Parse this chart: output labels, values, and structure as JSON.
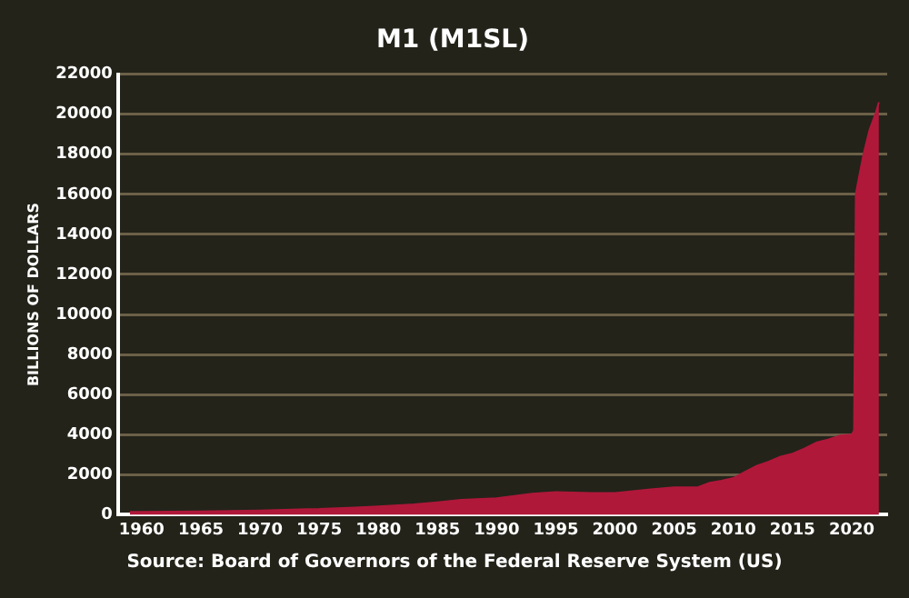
{
  "chart_data": {
    "type": "area",
    "title": "M1 (M1SL)",
    "ylabel": "BILLIONS OF DOLLARS",
    "annotations": [
      "Source: Board of Governors of the Federal Reserve System (US)"
    ],
    "x": [
      1959,
      1960,
      1965,
      1970,
      1974,
      1975,
      1978,
      1980,
      1983,
      1985,
      1987,
      1990,
      1993,
      1995,
      1998,
      2000,
      2003,
      2005,
      2007,
      2008,
      2009,
      2010,
      2011,
      2012,
      2013,
      2014,
      2015,
      2016,
      2017,
      2018,
      2019,
      2020,
      2020.2,
      2020.35,
      2020.5,
      2021,
      2021.5,
      2022,
      2022.3
    ],
    "series": [
      {
        "color": "#b0183a",
        "values": [
          140,
          140,
          165,
          210,
          280,
          290,
          360,
          410,
          520,
          620,
          740,
          820,
          1050,
          1130,
          1090,
          1090,
          1270,
          1370,
          1370,
          1600,
          1700,
          1830,
          2150,
          2450,
          2650,
          2900,
          3050,
          3300,
          3600,
          3750,
          3950,
          4000,
          4200,
          16000,
          16500,
          18000,
          19200,
          20000,
          20600
        ]
      }
    ],
    "xlim": [
      1958,
      2023
    ],
    "xticks": [
      1960,
      1965,
      1970,
      1975,
      1980,
      1985,
      1990,
      1995,
      2000,
      2005,
      2010,
      2015,
      2020
    ],
    "ylim": [
      0,
      22000
    ],
    "yticks": [
      0,
      2000,
      4000,
      6000,
      8000,
      10000,
      12000,
      14000,
      16000,
      18000,
      20000,
      22000
    ],
    "grid": "y",
    "legend": false
  }
}
